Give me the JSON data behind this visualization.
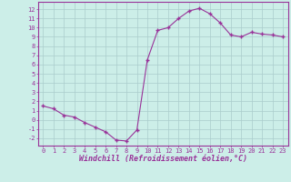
{
  "x": [
    0,
    1,
    2,
    3,
    4,
    5,
    6,
    7,
    8,
    9,
    10,
    11,
    12,
    13,
    14,
    15,
    16,
    17,
    18,
    19,
    20,
    21,
    22,
    23
  ],
  "y": [
    1.5,
    1.2,
    0.5,
    0.3,
    -0.3,
    -0.8,
    -1.3,
    -2.2,
    -2.3,
    -1.1,
    6.5,
    9.7,
    10.0,
    11.0,
    11.8,
    12.1,
    11.5,
    10.5,
    9.2,
    9.0,
    9.5,
    9.3,
    9.2,
    9.0
  ],
  "xlabel": "Windchill (Refroidissement éolien,°C)",
  "line_color": "#993399",
  "marker": "+",
  "bg_color": "#cceee8",
  "grid_color": "#aacccc",
  "axis_color": "#993399",
  "tick_color": "#993399",
  "xlim": [
    -0.5,
    23.5
  ],
  "ylim": [
    -2.8,
    12.8
  ],
  "yticks": [
    -2,
    -1,
    0,
    1,
    2,
    3,
    4,
    5,
    6,
    7,
    8,
    9,
    10,
    11,
    12
  ],
  "xticks": [
    0,
    1,
    2,
    3,
    4,
    5,
    6,
    7,
    8,
    9,
    10,
    11,
    12,
    13,
    14,
    15,
    16,
    17,
    18,
    19,
    20,
    21,
    22,
    23
  ],
  "tick_fontsize": 5.0,
  "xlabel_fontsize": 6.0
}
